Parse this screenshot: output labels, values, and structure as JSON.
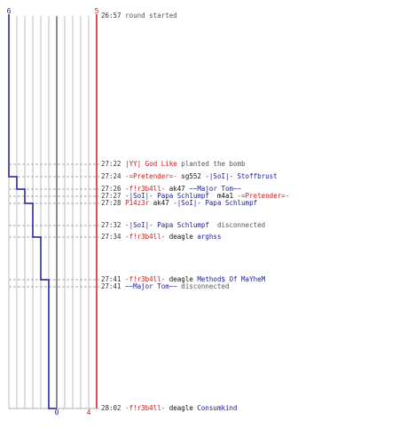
{
  "colors": {
    "red": "#cc1a1a",
    "blue": "#1a1a99",
    "grid": "#bbbbbb",
    "center": "#666666"
  },
  "score": {
    "blue_start": "6",
    "red_start": "5",
    "blue_end": "0",
    "red_end": "4"
  },
  "events": [
    {
      "time": "26:57",
      "parts": [
        {
          "text": "round started",
          "cls": "gray"
        }
      ]
    },
    {
      "time": "27:22",
      "parts": [
        {
          "text": "|YY| God Like",
          "cls": "red"
        },
        {
          "text": " planted the bomb",
          "cls": "gray"
        }
      ]
    },
    {
      "time": "27:24",
      "parts": [
        {
          "text": "-=Pretender=-",
          "cls": "red"
        },
        {
          "text": " sg552 ",
          "cls": "dark"
        },
        {
          "text": "-|SoI|- Stoffbrust",
          "cls": "blue"
        }
      ]
    },
    {
      "time": "27:26",
      "parts": [
        {
          "text": "-f!r3b4ll-",
          "cls": "red"
        },
        {
          "text": " ak47 ",
          "cls": "dark"
        },
        {
          "text": "~~Major Tom~~",
          "cls": "blue"
        }
      ]
    },
    {
      "time": "27:27",
      "parts": [
        {
          "text": "-|SoI|- Papa Schlumpf",
          "cls": "blue"
        },
        {
          "text": "  m4a1 ",
          "cls": "dark"
        },
        {
          "text": "-=Pretender=-",
          "cls": "red"
        }
      ]
    },
    {
      "time": "27:28",
      "parts": [
        {
          "text": "P14z3r",
          "cls": "red"
        },
        {
          "text": " ak47 ",
          "cls": "dark"
        },
        {
          "text": "-|SoI|- Papa Schlumpf",
          "cls": "blue"
        }
      ]
    },
    {
      "time": "27:32",
      "parts": [
        {
          "text": "-|SoI|- Papa Schlumpf",
          "cls": "blue"
        },
        {
          "text": "  disconnected",
          "cls": "gray"
        }
      ]
    },
    {
      "time": "27:34",
      "parts": [
        {
          "text": "-f!r3b4ll-",
          "cls": "red"
        },
        {
          "text": " deagle ",
          "cls": "dark"
        },
        {
          "text": "arghss",
          "cls": "blue"
        }
      ]
    },
    {
      "time": "27:41",
      "parts": [
        {
          "text": "-f!r3b4ll-",
          "cls": "red"
        },
        {
          "text": " deagle ",
          "cls": "dark"
        },
        {
          "text": "Method$ Of MaYheM",
          "cls": "blue"
        }
      ]
    },
    {
      "time": "27:41",
      "parts": [
        {
          "text": "~~Major Tom~~",
          "cls": "blue"
        },
        {
          "text": " disconnected",
          "cls": "gray"
        }
      ]
    },
    {
      "time": "28:02",
      "parts": [
        {
          "text": "-f!r3b4ll-",
          "cls": "red"
        },
        {
          "text": " deagle ",
          "cls": "dark"
        },
        {
          "text": "Consumkind",
          "cls": "blue"
        }
      ]
    }
  ]
}
